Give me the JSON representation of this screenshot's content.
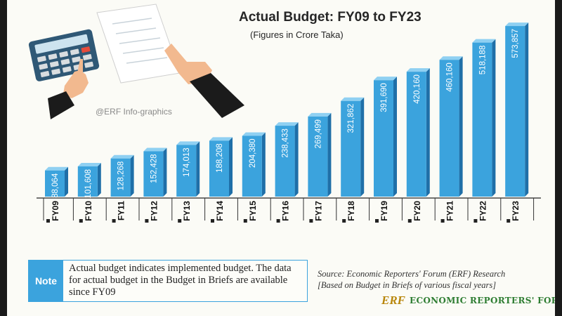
{
  "page": {
    "watermark": "@ERF Info-graphics",
    "note_label": "Note",
    "note_text": "Actual budget indicates implemented budget. The data for actual budget in the Budget in Briefs are available since FY09",
    "source_line1": "Source: Economic Reporters' Forum (ERF) Research",
    "source_line2": "[Based on Budget in Briefs of various fiscal years]",
    "logo_mark": "ERF",
    "logo_text": "ECONOMIC REPORTERS' FORUM"
  },
  "colors": {
    "bar": "#3ba3dd",
    "bar_side": "#1f6fa8",
    "bar_top": "#8fd0f2",
    "frame": "#1a1a1a",
    "logo_green": "#2e7d32"
  },
  "chart_data": {
    "type": "bar",
    "title": "Actual Budget: FY09 to FY23",
    "subtitle": "(Figures in Crore Taka)",
    "categories": [
      "FY09",
      "FY10",
      "FY11",
      "FY12",
      "FY13",
      "FY14",
      "FY15",
      "FY16",
      "FY17",
      "FY18",
      "FY19",
      "FY20",
      "FY21",
      "FY22",
      "FY23"
    ],
    "values": [
      88064,
      101608,
      128268,
      152428,
      174013,
      188208,
      204380,
      238433,
      269499,
      321862,
      391690,
      420160,
      460160,
      518188,
      573857
    ],
    "data_labels": [
      "88,064",
      "101,608",
      "128,268",
      "152,428",
      "174,013",
      "188,208",
      "204,380",
      "238,433",
      "269,499",
      "321,862",
      "391,690",
      "420,160",
      "460,160",
      "518,188",
      "573,857"
    ],
    "ylim": [
      0,
      600000
    ],
    "grid": false,
    "legend": "none"
  }
}
